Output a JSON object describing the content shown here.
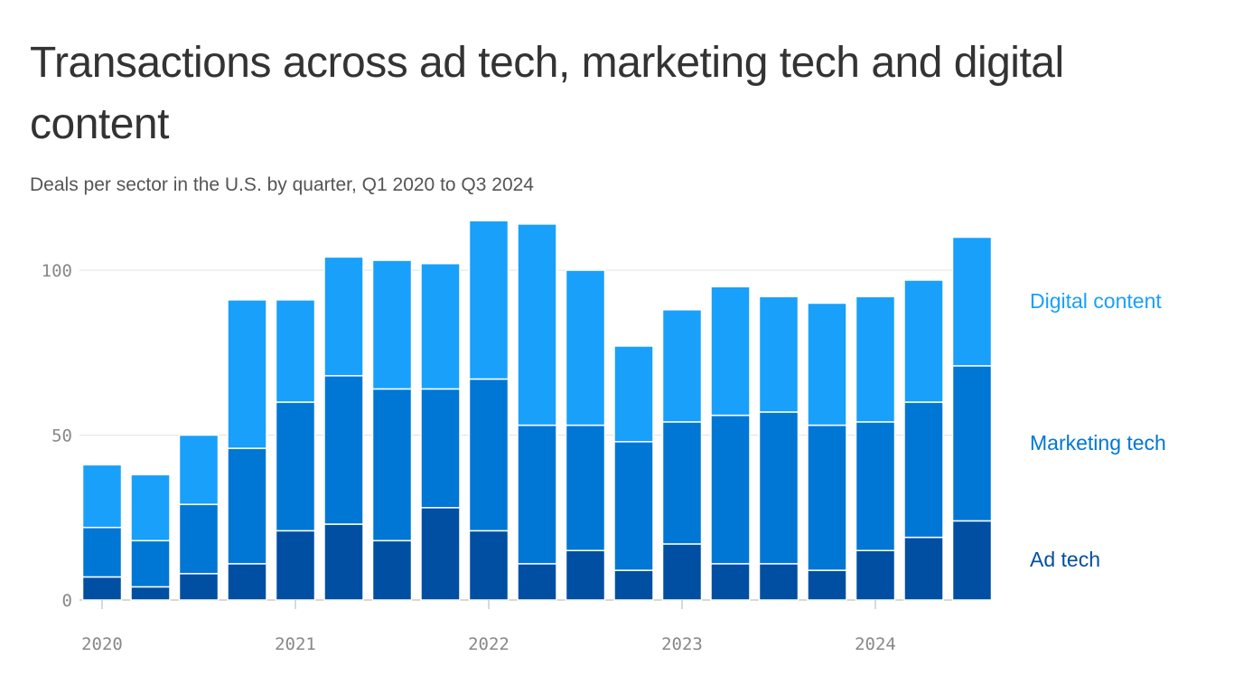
{
  "chart_data": {
    "type": "bar",
    "stacked": true,
    "title": "Transactions across ad tech, marketing tech and digital content",
    "subtitle": "Deals per sector in the U.S. by quarter, Q1 2020 to Q3 2024",
    "xlabel": "",
    "ylabel": "",
    "ylim": [
      0,
      115
    ],
    "yticks": [
      0,
      50,
      100
    ],
    "xtick_labels": [
      "2020",
      "2021",
      "2022",
      "2023",
      "2024"
    ],
    "categories": [
      "Q1 2020",
      "Q2 2020",
      "Q3 2020",
      "Q4 2020",
      "Q1 2021",
      "Q2 2021",
      "Q3 2021",
      "Q4 2021",
      "Q1 2022",
      "Q2 2022",
      "Q3 2022",
      "Q4 2022",
      "Q1 2023",
      "Q2 2023",
      "Q3 2023",
      "Q4 2023",
      "Q1 2024",
      "Q2 2024",
      "Q3 2024"
    ],
    "grid": true,
    "legend_placement": "right",
    "series": [
      {
        "name": "Ad tech",
        "color": "#004fa3",
        "values": [
          7,
          4,
          8,
          11,
          21,
          23,
          18,
          28,
          21,
          11,
          15,
          9,
          17,
          11,
          11,
          9,
          15,
          19,
          24
        ]
      },
      {
        "name": "Marketing tech",
        "color": "#0077d4",
        "values": [
          15,
          14,
          21,
          35,
          39,
          45,
          46,
          36,
          46,
          42,
          38,
          39,
          37,
          45,
          46,
          44,
          39,
          41,
          47
        ]
      },
      {
        "name": "Digital content",
        "color": "#18a0fb",
        "values": [
          19,
          20,
          21,
          45,
          31,
          36,
          39,
          38,
          48,
          61,
          47,
          29,
          34,
          39,
          35,
          37,
          38,
          37,
          39
        ]
      }
    ]
  }
}
